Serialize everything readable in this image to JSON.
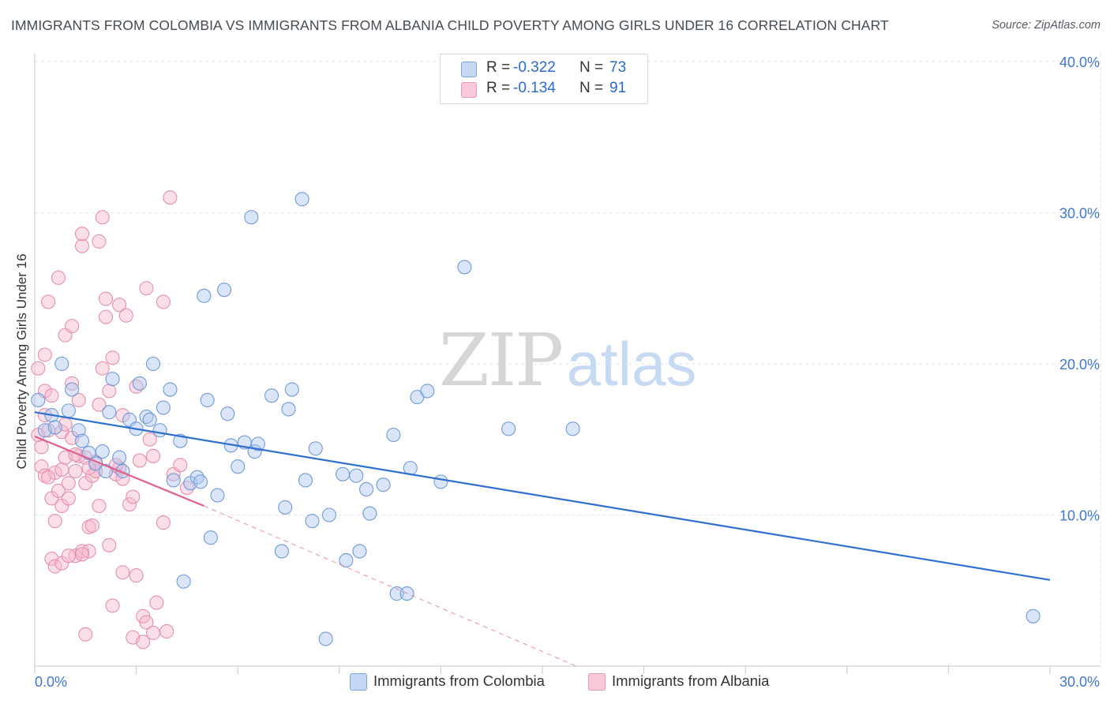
{
  "title": "IMMIGRANTS FROM COLOMBIA VS IMMIGRANTS FROM ALBANIA CHILD POVERTY AMONG GIRLS UNDER 16 CORRELATION CHART",
  "source": "Source: ZipAtlas.com",
  "watermark": {
    "zip": "ZIP",
    "atlas": "atlas"
  },
  "legend": {
    "colombia": {
      "r_label": "R =",
      "r_value": "-0.322",
      "n_label": "N =",
      "n_value": "73"
    },
    "albania": {
      "r_label": "R =",
      "r_value": "-0.134",
      "n_label": "N =",
      "n_value": "91"
    }
  },
  "bottom_legend": {
    "colombia": "Immigrants from Colombia",
    "albania": "Immigrants from Albania"
  },
  "colors": {
    "colombia_fill": "#aec8ef",
    "colombia_stroke": "#6f9ad8",
    "colombia_line": "#2e6fd1",
    "albania_fill": "#f6b8cc",
    "albania_stroke": "#e58fab",
    "albania_line": "#e0608c",
    "tick_text": "#3f78d0",
    "grid": "#e6e6e6"
  },
  "chart_data": {
    "type": "scatter",
    "ylabel": "Child Poverty Among Girls Under 16",
    "xlabel": "",
    "xlim": [
      0,
      30
    ],
    "ylim": [
      0,
      40
    ],
    "x_tick_labels": [
      "0.0%",
      "30.0%"
    ],
    "y_ticks": [
      10,
      20,
      30,
      40
    ],
    "y_tick_labels": [
      "10.0%",
      "20.0%",
      "30.0%",
      "40.0%"
    ],
    "series": [
      {
        "name": "Immigrants from Colombia",
        "R": -0.322,
        "N": 73,
        "trend": {
          "x0": 0,
          "y0": 16.8,
          "x1": 30,
          "y1": 5.7
        },
        "points": [
          [
            0.1,
            17.6
          ],
          [
            0.3,
            15.6
          ],
          [
            0.5,
            16.6
          ],
          [
            0.6,
            15.8
          ],
          [
            0.8,
            20.0
          ],
          [
            1.0,
            16.9
          ],
          [
            1.1,
            18.3
          ],
          [
            1.3,
            15.6
          ],
          [
            1.4,
            14.9
          ],
          [
            1.6,
            14.1
          ],
          [
            1.8,
            13.4
          ],
          [
            2.0,
            14.2
          ],
          [
            2.2,
            16.8
          ],
          [
            2.3,
            19.0
          ],
          [
            2.5,
            13.8
          ],
          [
            2.6,
            12.9
          ],
          [
            2.8,
            16.3
          ],
          [
            3.0,
            15.7
          ],
          [
            3.1,
            18.7
          ],
          [
            3.3,
            16.5
          ],
          [
            3.4,
            16.3
          ],
          [
            3.5,
            20.0
          ],
          [
            3.7,
            15.6
          ],
          [
            3.8,
            17.1
          ],
          [
            4.0,
            18.3
          ],
          [
            4.1,
            12.3
          ],
          [
            4.3,
            14.9
          ],
          [
            4.4,
            5.6
          ],
          [
            4.6,
            12.1
          ],
          [
            4.8,
            12.5
          ],
          [
            4.9,
            12.2
          ],
          [
            5.0,
            24.5
          ],
          [
            5.1,
            17.6
          ],
          [
            5.2,
            8.5
          ],
          [
            5.4,
            11.3
          ],
          [
            5.6,
            24.9
          ],
          [
            5.7,
            16.7
          ],
          [
            5.8,
            14.6
          ],
          [
            6.0,
            13.2
          ],
          [
            6.2,
            14.8
          ],
          [
            6.4,
            29.7
          ],
          [
            6.5,
            14.2
          ],
          [
            6.6,
            14.7
          ],
          [
            7.0,
            17.9
          ],
          [
            7.3,
            7.6
          ],
          [
            7.4,
            10.5
          ],
          [
            7.5,
            17.0
          ],
          [
            7.6,
            18.3
          ],
          [
            7.9,
            30.9
          ],
          [
            8.0,
            12.3
          ],
          [
            8.2,
            9.6
          ],
          [
            8.3,
            14.4
          ],
          [
            8.6,
            1.8
          ],
          [
            8.7,
            10.0
          ],
          [
            9.1,
            12.7
          ],
          [
            9.2,
            7.0
          ],
          [
            9.5,
            12.6
          ],
          [
            9.6,
            7.6
          ],
          [
            9.8,
            11.7
          ],
          [
            9.9,
            10.1
          ],
          [
            10.3,
            12.0
          ],
          [
            10.6,
            15.3
          ],
          [
            10.7,
            4.8
          ],
          [
            11.0,
            4.8
          ],
          [
            11.1,
            13.1
          ],
          [
            11.3,
            17.8
          ],
          [
            11.6,
            18.2
          ],
          [
            12.0,
            12.2
          ],
          [
            12.7,
            26.4
          ],
          [
            14.0,
            15.7
          ],
          [
            15.9,
            15.7
          ],
          [
            29.5,
            3.3
          ],
          [
            2.1,
            12.9
          ]
        ]
      },
      {
        "name": "Immigrants from Albania",
        "R": -0.134,
        "N": 91,
        "trend": {
          "x0": 0,
          "y0": 15.2,
          "x1": 5.0,
          "y1": 10.6
        },
        "trend_extension": {
          "x0": 5.0,
          "y0": 10.6,
          "x1": 16.0,
          "y1": 0.0
        },
        "points": [
          [
            0.1,
            19.7
          ],
          [
            0.1,
            15.3
          ],
          [
            0.2,
            14.5
          ],
          [
            0.2,
            13.2
          ],
          [
            0.3,
            12.6
          ],
          [
            0.3,
            16.6
          ],
          [
            0.3,
            20.6
          ],
          [
            0.3,
            18.2
          ],
          [
            0.4,
            24.1
          ],
          [
            0.4,
            15.6
          ],
          [
            0.5,
            7.1
          ],
          [
            0.5,
            11.1
          ],
          [
            0.6,
            6.6
          ],
          [
            0.6,
            9.6
          ],
          [
            0.6,
            12.8
          ],
          [
            0.7,
            25.7
          ],
          [
            0.7,
            11.6
          ],
          [
            0.8,
            6.8
          ],
          [
            0.8,
            10.6
          ],
          [
            0.8,
            13.0
          ],
          [
            0.8,
            15.5
          ],
          [
            0.9,
            21.9
          ],
          [
            0.9,
            13.8
          ],
          [
            1.0,
            11.1
          ],
          [
            1.0,
            12.1
          ],
          [
            1.1,
            22.5
          ],
          [
            1.1,
            18.7
          ],
          [
            1.1,
            15.1
          ],
          [
            1.2,
            7.3
          ],
          [
            1.2,
            12.9
          ],
          [
            1.3,
            17.6
          ],
          [
            1.3,
            13.9
          ],
          [
            1.4,
            27.8
          ],
          [
            1.4,
            28.6
          ],
          [
            1.4,
            7.6
          ],
          [
            1.5,
            2.1
          ],
          [
            1.5,
            13.8
          ],
          [
            1.5,
            12.1
          ],
          [
            1.6,
            9.2
          ],
          [
            1.6,
            7.6
          ],
          [
            1.7,
            9.3
          ],
          [
            1.7,
            12.6
          ],
          [
            1.8,
            13.5
          ],
          [
            1.8,
            12.9
          ],
          [
            1.9,
            17.3
          ],
          [
            1.9,
            10.6
          ],
          [
            1.9,
            28.1
          ],
          [
            2.0,
            29.7
          ],
          [
            2.0,
            19.7
          ],
          [
            2.1,
            23.1
          ],
          [
            2.1,
            24.3
          ],
          [
            2.2,
            8.0
          ],
          [
            2.2,
            18.2
          ],
          [
            2.3,
            20.4
          ],
          [
            2.3,
            4.0
          ],
          [
            2.4,
            12.7
          ],
          [
            2.5,
            13.1
          ],
          [
            2.5,
            23.9
          ],
          [
            2.6,
            6.2
          ],
          [
            2.6,
            16.6
          ],
          [
            2.6,
            12.4
          ],
          [
            2.7,
            23.2
          ],
          [
            2.8,
            10.7
          ],
          [
            2.9,
            11.2
          ],
          [
            2.9,
            1.9
          ],
          [
            3.0,
            6.0
          ],
          [
            3.0,
            18.5
          ],
          [
            3.1,
            13.6
          ],
          [
            3.2,
            3.3
          ],
          [
            3.2,
            1.6
          ],
          [
            3.3,
            2.9
          ],
          [
            3.3,
            25.0
          ],
          [
            3.4,
            15.0
          ],
          [
            3.5,
            2.2
          ],
          [
            3.5,
            13.9
          ],
          [
            3.6,
            4.2
          ],
          [
            3.8,
            24.1
          ],
          [
            3.8,
            9.5
          ],
          [
            3.9,
            2.3
          ],
          [
            4.0,
            31.0
          ],
          [
            4.1,
            12.7
          ],
          [
            4.3,
            13.3
          ],
          [
            4.5,
            11.8
          ],
          [
            1.0,
            7.3
          ],
          [
            1.4,
            7.4
          ],
          [
            0.4,
            12.5
          ],
          [
            0.5,
            17.9
          ],
          [
            2.4,
            13.3
          ],
          [
            1.2,
            14.0
          ],
          [
            0.9,
            16.0
          ],
          [
            1.6,
            13.1
          ]
        ]
      }
    ]
  }
}
